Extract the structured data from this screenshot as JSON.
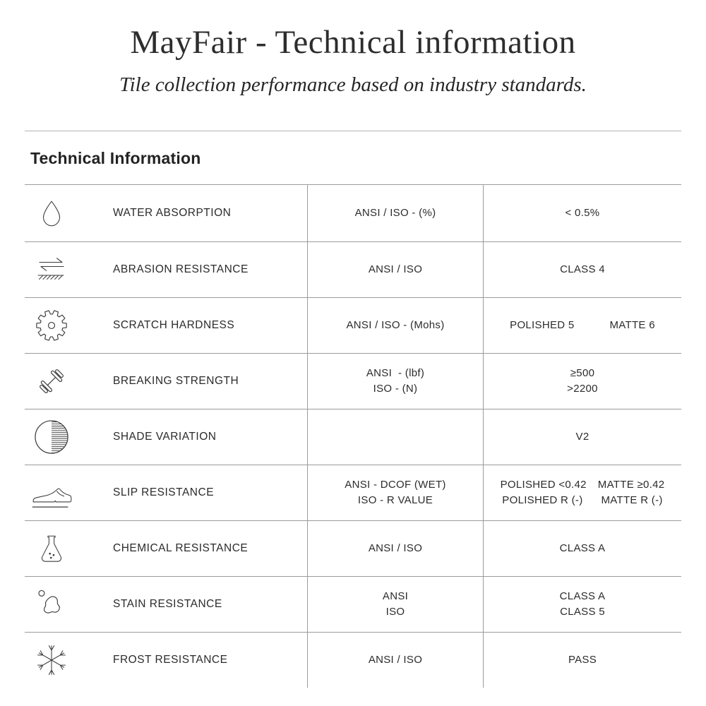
{
  "header": {
    "title": "MayFair - Technical information",
    "subtitle": "Tile collection performance based on industry standards."
  },
  "section": {
    "title": "Technical Information"
  },
  "table": {
    "rows": [
      {
        "icon": "water-drop",
        "label": "WATER ABSORPTION",
        "standard": [
          "ANSI / ISO - (%)"
        ],
        "value": [
          [
            "< 0.5%"
          ]
        ]
      },
      {
        "icon": "abrasion-arrows",
        "label": "ABRASION RESISTANCE",
        "standard": [
          "ANSI / ISO"
        ],
        "value": [
          [
            "CLASS 4"
          ]
        ]
      },
      {
        "icon": "gear",
        "label": "SCRATCH HARDNESS",
        "standard": [
          "ANSI / ISO - (Mohs)"
        ],
        "value": [
          [
            "POLISHED 5",
            "MATTE 6"
          ]
        ]
      },
      {
        "icon": "dumbbell",
        "label": "BREAKING STRENGTH",
        "standard": [
          "ANSI  - (lbf)",
          "ISO - (N)"
        ],
        "value": [
          [
            "≥500"
          ],
          [
            ">2200"
          ]
        ]
      },
      {
        "icon": "shade-circle",
        "label": "SHADE VARIATION",
        "standard": [],
        "value": [
          [
            "V2"
          ]
        ]
      },
      {
        "icon": "shoe",
        "label": "SLIP RESISTANCE",
        "standard": [
          "ANSI - DCOF (WET)",
          "ISO - R VALUE"
        ],
        "value": [
          [
            "POLISHED <0.42",
            "MATTE ≥0.42"
          ],
          [
            "POLISHED R (-)",
            "MATTE R (-)"
          ]
        ]
      },
      {
        "icon": "flask",
        "label": "CHEMICAL RESISTANCE",
        "standard": [
          "ANSI / ISO"
        ],
        "value": [
          [
            "CLASS A"
          ]
        ]
      },
      {
        "icon": "stain-blob",
        "label": "STAIN RESISTANCE",
        "standard": [
          "ANSI",
          "ISO"
        ],
        "value": [
          [
            "CLASS A"
          ],
          [
            "CLASS 5"
          ]
        ]
      },
      {
        "icon": "snowflake",
        "label": "FROST RESISTANCE",
        "standard": [
          "ANSI / ISO"
        ],
        "value": [
          [
            "PASS"
          ]
        ]
      }
    ]
  },
  "colors": {
    "text": "#2b2b2b",
    "table_border": "#9b9b9b",
    "top_rule": "#b4b4b4",
    "icon_stroke": "#3c3c3c"
  }
}
